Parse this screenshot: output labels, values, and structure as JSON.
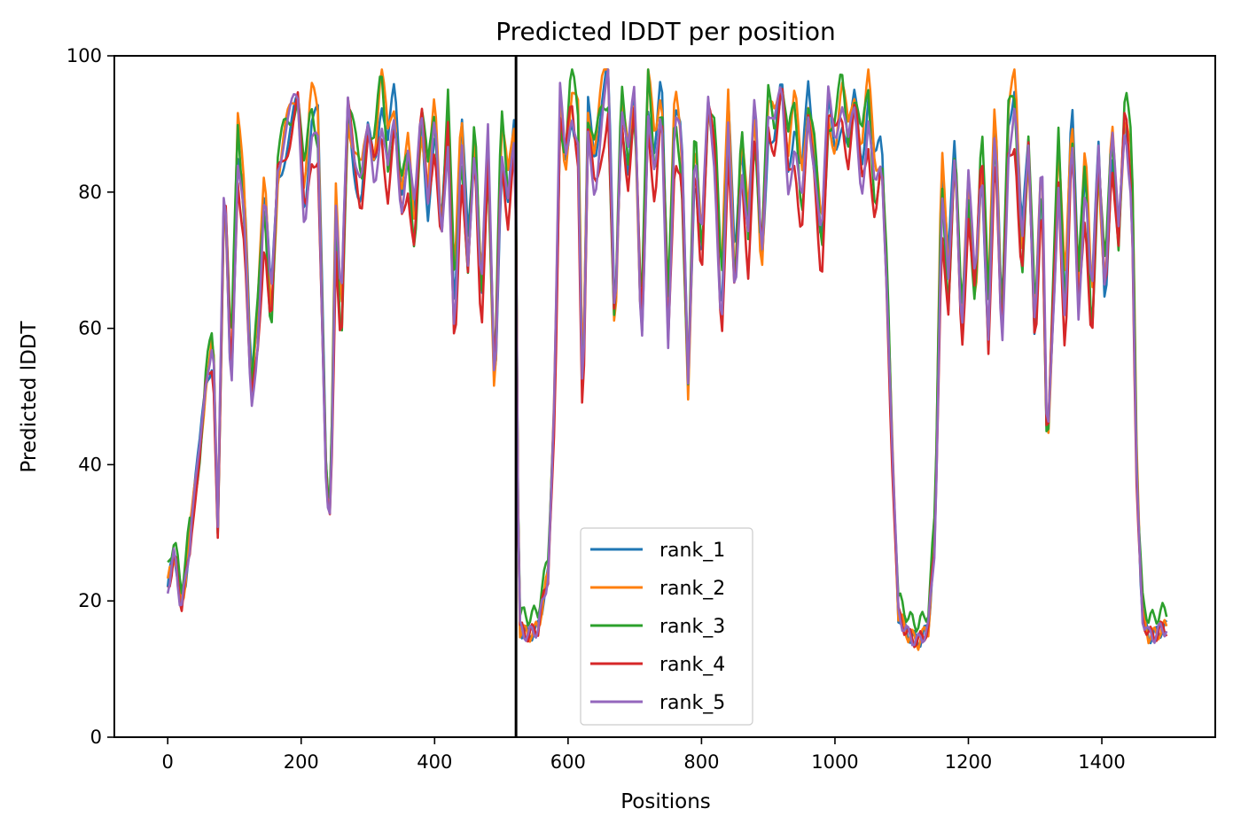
{
  "chart_data": {
    "type": "line",
    "title": "Predicted lDDT per position",
    "xlabel": "Positions",
    "ylabel": "Predicted lDDT",
    "xlim": [
      -80,
      1570
    ],
    "ylim": [
      0,
      100
    ],
    "xticks": [
      0,
      200,
      400,
      600,
      800,
      1000,
      1200,
      1400
    ],
    "yticks": [
      0,
      20,
      40,
      60,
      80,
      100
    ],
    "grid": false,
    "legend_position": "lower-center",
    "vertical_line_x": 522,
    "series": [
      {
        "name": "rank_1",
        "color": "#1f77b4"
      },
      {
        "name": "rank_2",
        "color": "#ff7f0e"
      },
      {
        "name": "rank_3",
        "color": "#2ca02c"
      },
      {
        "name": "rank_4",
        "color": "#d62728"
      },
      {
        "name": "rank_5",
        "color": "#9467bd"
      }
    ],
    "base_profile": [
      [
        0,
        22
      ],
      [
        10,
        27
      ],
      [
        20,
        19
      ],
      [
        28,
        24
      ],
      [
        38,
        34
      ],
      [
        48,
        42
      ],
      [
        58,
        54
      ],
      [
        68,
        58
      ],
      [
        75,
        30
      ],
      [
        85,
        82
      ],
      [
        95,
        52
      ],
      [
        105,
        86
      ],
      [
        115,
        76
      ],
      [
        125,
        50
      ],
      [
        135,
        62
      ],
      [
        145,
        80
      ],
      [
        155,
        62
      ],
      [
        165,
        84
      ],
      [
        175,
        88
      ],
      [
        185,
        90
      ],
      [
        195,
        93
      ],
      [
        205,
        78
      ],
      [
        215,
        90
      ],
      [
        225,
        88
      ],
      [
        232,
        60
      ],
      [
        238,
        36
      ],
      [
        244,
        34
      ],
      [
        252,
        78
      ],
      [
        260,
        60
      ],
      [
        270,
        93
      ],
      [
        280,
        86
      ],
      [
        290,
        80
      ],
      [
        300,
        88
      ],
      [
        310,
        84
      ],
      [
        320,
        94
      ],
      [
        330,
        84
      ],
      [
        340,
        92
      ],
      [
        350,
        80
      ],
      [
        360,
        86
      ],
      [
        370,
        74
      ],
      [
        380,
        92
      ],
      [
        390,
        80
      ],
      [
        400,
        90
      ],
      [
        410,
        72
      ],
      [
        420,
        91
      ],
      [
        430,
        62
      ],
      [
        440,
        88
      ],
      [
        450,
        70
      ],
      [
        460,
        90
      ],
      [
        470,
        64
      ],
      [
        480,
        86
      ],
      [
        490,
        50
      ],
      [
        500,
        88
      ],
      [
        510,
        78
      ],
      [
        520,
        88
      ],
      [
        523,
        70
      ],
      [
        526,
        16
      ],
      [
        540,
        15
      ],
      [
        555,
        16
      ],
      [
        570,
        24
      ],
      [
        580,
        50
      ],
      [
        588,
        92
      ],
      [
        596,
        84
      ],
      [
        605,
        94
      ],
      [
        615,
        88
      ],
      [
        622,
        46
      ],
      [
        630,
        90
      ],
      [
        640,
        84
      ],
      [
        650,
        92
      ],
      [
        660,
        96
      ],
      [
        670,
        60
      ],
      [
        680,
        94
      ],
      [
        690,
        84
      ],
      [
        700,
        93
      ],
      [
        710,
        58
      ],
      [
        720,
        94
      ],
      [
        730,
        82
      ],
      [
        740,
        94
      ],
      [
        750,
        62
      ],
      [
        760,
        92
      ],
      [
        770,
        86
      ],
      [
        780,
        52
      ],
      [
        790,
        88
      ],
      [
        800,
        70
      ],
      [
        810,
        92
      ],
      [
        820,
        86
      ],
      [
        830,
        62
      ],
      [
        840,
        90
      ],
      [
        850,
        66
      ],
      [
        860,
        88
      ],
      [
        870,
        74
      ],
      [
        880,
        92
      ],
      [
        890,
        70
      ],
      [
        900,
        92
      ],
      [
        910,
        88
      ],
      [
        920,
        95
      ],
      [
        930,
        84
      ],
      [
        940,
        90
      ],
      [
        950,
        78
      ],
      [
        960,
        93
      ],
      [
        970,
        86
      ],
      [
        980,
        72
      ],
      [
        990,
        92
      ],
      [
        1000,
        88
      ],
      [
        1010,
        94
      ],
      [
        1020,
        86
      ],
      [
        1030,
        93
      ],
      [
        1040,
        84
      ],
      [
        1050,
        93
      ],
      [
        1060,
        80
      ],
      [
        1070,
        86
      ],
      [
        1078,
        68
      ],
      [
        1086,
        42
      ],
      [
        1095,
        18
      ],
      [
        1110,
        15
      ],
      [
        1125,
        14
      ],
      [
        1140,
        16
      ],
      [
        1150,
        30
      ],
      [
        1160,
        82
      ],
      [
        1170,
        66
      ],
      [
        1180,
        88
      ],
      [
        1190,
        60
      ],
      [
        1200,
        80
      ],
      [
        1210,
        64
      ],
      [
        1220,
        86
      ],
      [
        1230,
        60
      ],
      [
        1240,
        90
      ],
      [
        1250,
        58
      ],
      [
        1260,
        90
      ],
      [
        1270,
        94
      ],
      [
        1280,
        70
      ],
      [
        1290,
        88
      ],
      [
        1300,
        60
      ],
      [
        1310,
        84
      ],
      [
        1318,
        40
      ],
      [
        1325,
        58
      ],
      [
        1335,
        84
      ],
      [
        1345,
        60
      ],
      [
        1355,
        90
      ],
      [
        1365,
        66
      ],
      [
        1375,
        84
      ],
      [
        1385,
        62
      ],
      [
        1395,
        86
      ],
      [
        1405,
        66
      ],
      [
        1415,
        88
      ],
      [
        1425,
        72
      ],
      [
        1435,
        92
      ],
      [
        1445,
        82
      ],
      [
        1452,
        40
      ],
      [
        1460,
        18
      ],
      [
        1470,
        15
      ],
      [
        1480,
        15
      ],
      [
        1490,
        16
      ],
      [
        1497,
        16
      ]
    ]
  }
}
